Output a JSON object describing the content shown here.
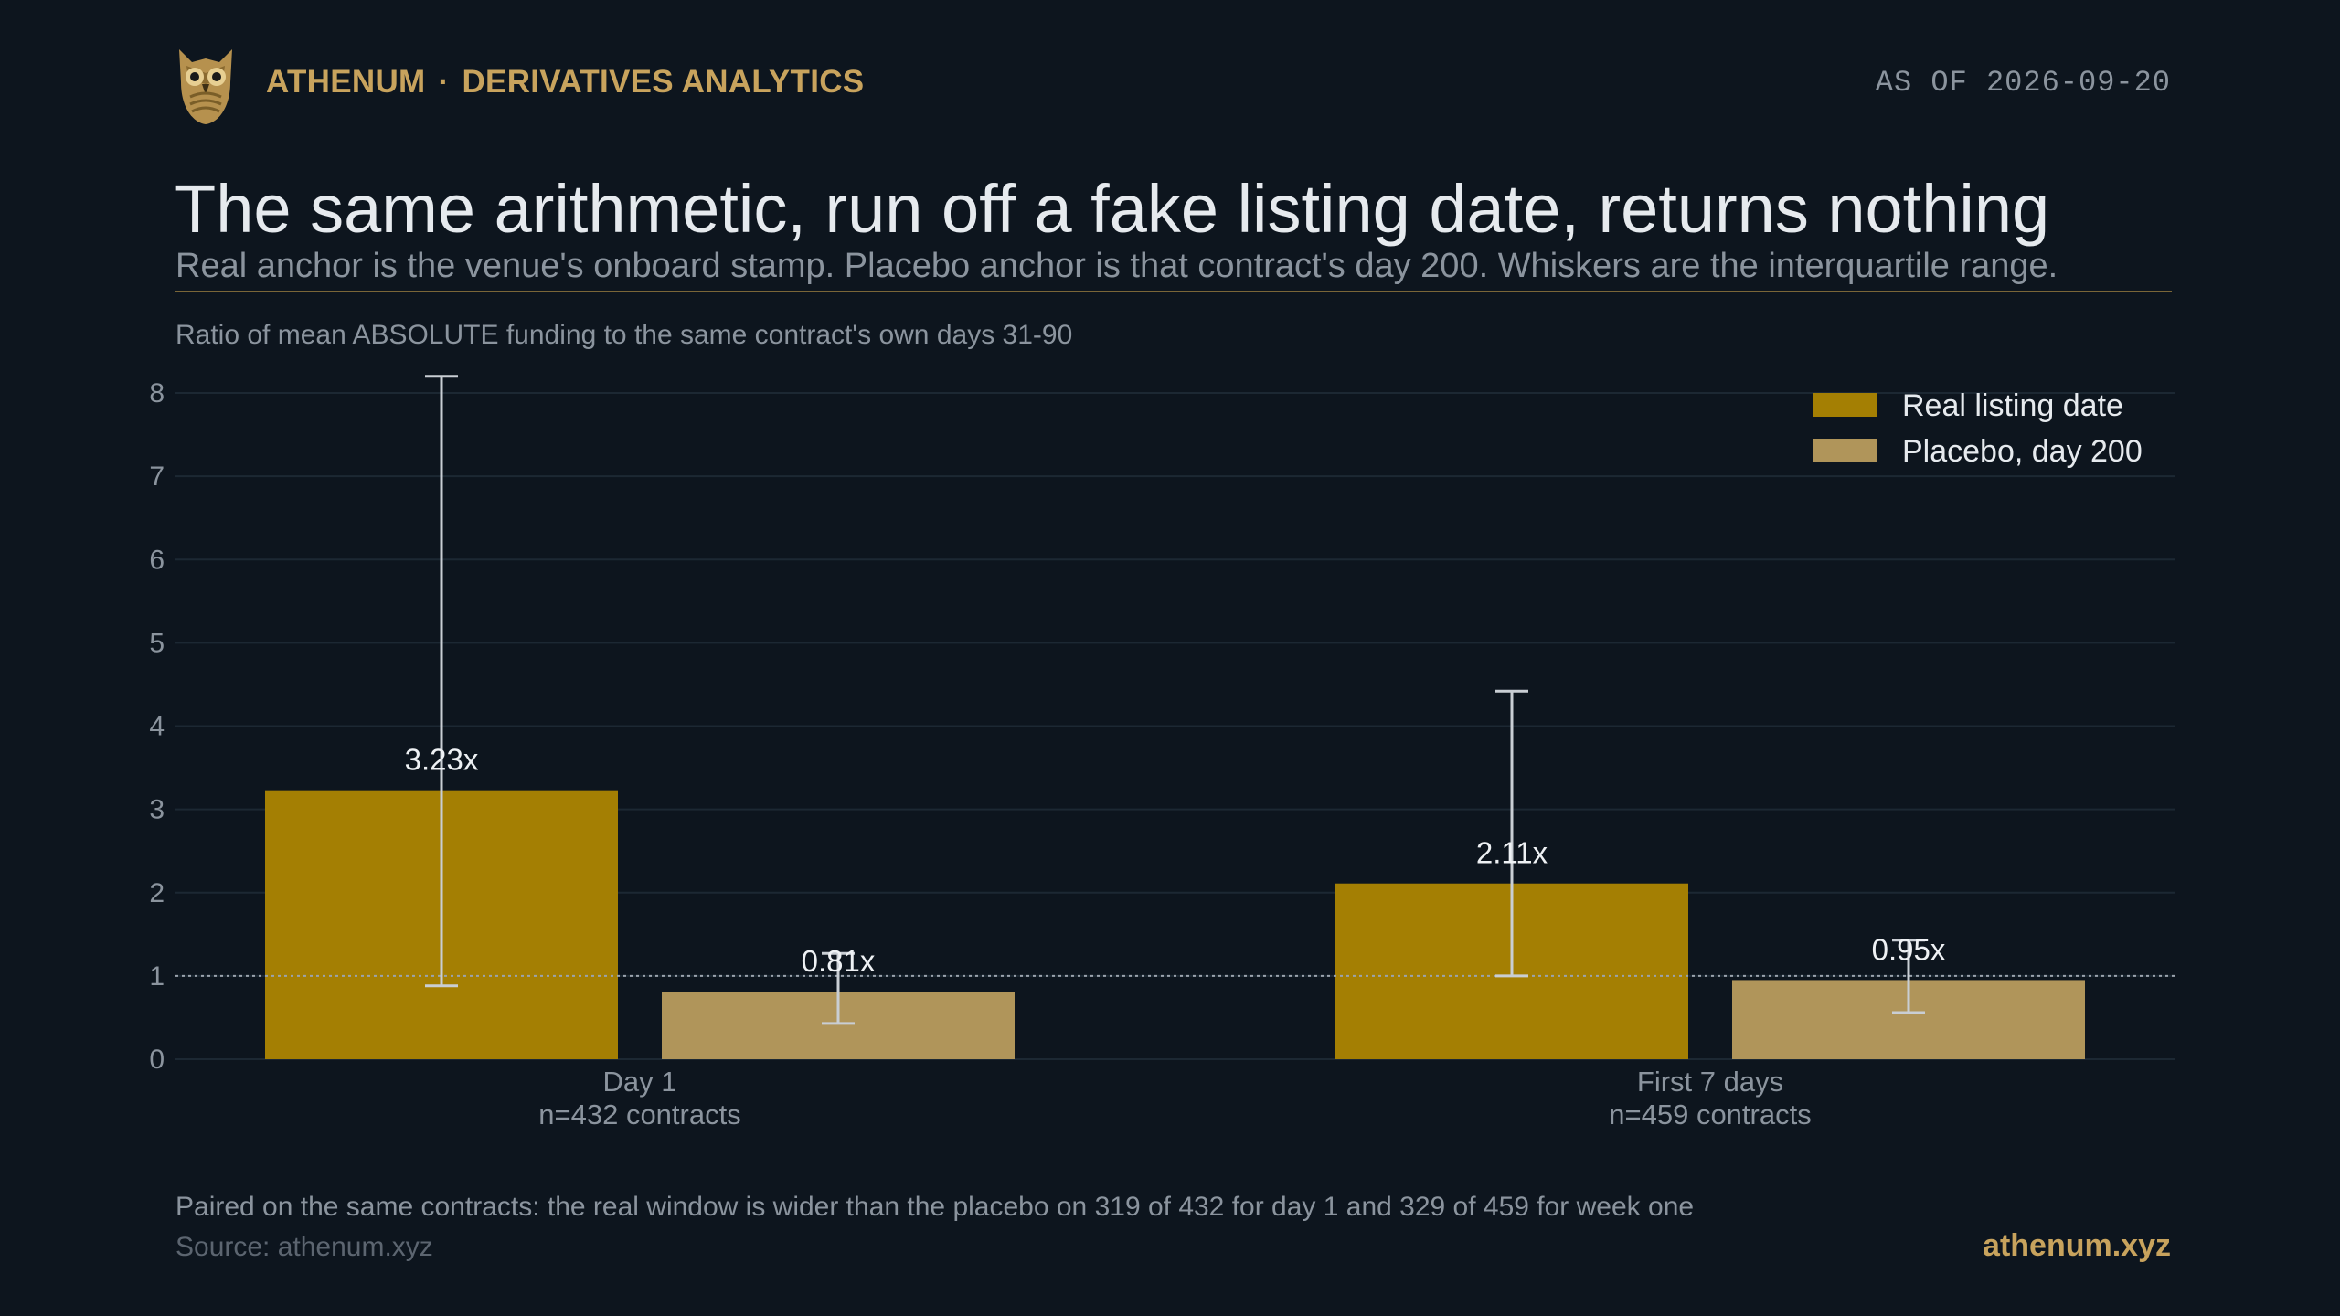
{
  "header": {
    "brand": "ATHENUM",
    "brand_separator": "·",
    "section": "DERIVATIVES ANALYTICS",
    "as_of": "AS OF 2026-09-20",
    "logo_icon": "owl-icon"
  },
  "headline": {
    "title": "The same arithmetic, run off a fake listing date, returns nothing",
    "subtitle": "Real anchor is the venue's onboard stamp. Placebo anchor is that contract's day 200. Whiskers are the interquartile range."
  },
  "footer": {
    "note": "Paired on the same contracts: the real window is wider than the placebo on 319 of 432 for day 1 and 329 of 459 for week one",
    "source": "Source: athenum.xyz",
    "site": "athenum.xyz"
  },
  "colors": {
    "background": "#0d151e",
    "real": "#a47f03",
    "placebo": "#b0955a",
    "accent": "#c8a35d",
    "whisker": "#c9ced4",
    "grid": "#1c2833",
    "axis_text": "#8b949e"
  },
  "chart_data": {
    "type": "bar",
    "ylabel": "Ratio of mean ABSOLUTE funding to the same contract's own days 31-90",
    "ylim": [
      0,
      8
    ],
    "yticks": [
      0,
      1,
      2,
      3,
      4,
      5,
      6,
      7,
      8
    ],
    "grid": true,
    "reference_line": 1,
    "legend_position": "top-right",
    "categories": [
      {
        "label": "Day 1",
        "sublabel": "n=432 contracts"
      },
      {
        "label": "First 7 days",
        "sublabel": "n=459 contracts"
      }
    ],
    "series": [
      {
        "name": "Real listing date",
        "values": [
          3.23,
          2.11
        ],
        "value_labels": [
          "3.23x",
          "2.11x"
        ],
        "iqr": [
          [
            0.88,
            8.2
          ],
          [
            1.0,
            4.42
          ]
        ]
      },
      {
        "name": "Placebo, day 200",
        "values": [
          0.81,
          0.95
        ],
        "value_labels": [
          "0.81x",
          "0.95x"
        ],
        "iqr": [
          [
            0.43,
            1.27
          ],
          [
            0.56,
            1.43
          ]
        ]
      }
    ]
  }
}
